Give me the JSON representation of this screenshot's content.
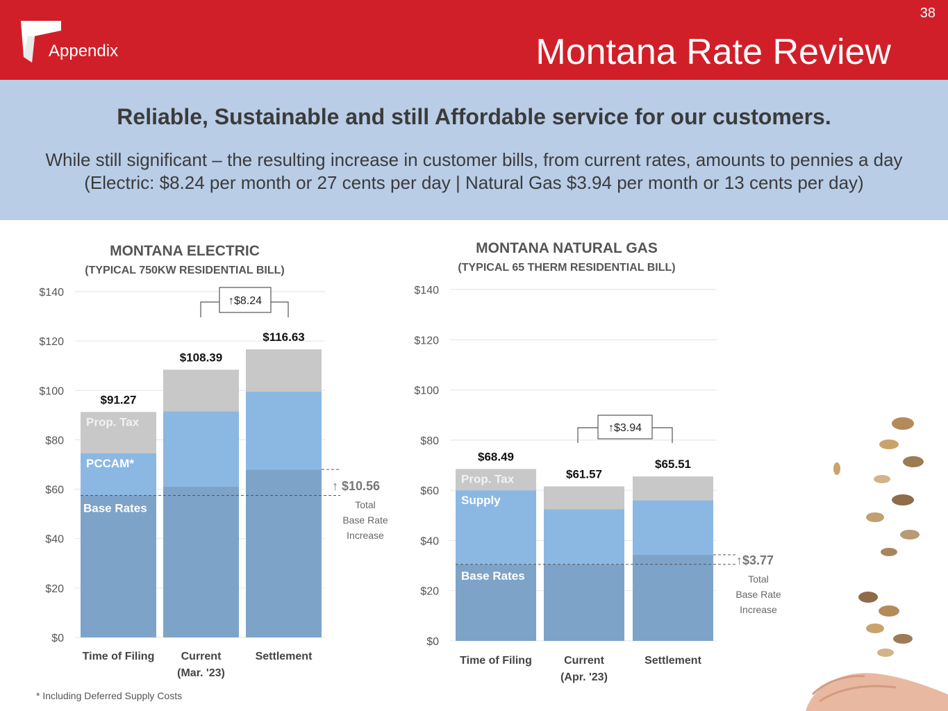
{
  "header": {
    "section": "Appendix",
    "title": "Montana Rate Review",
    "page_number": "38"
  },
  "banner": {
    "headline": "Reliable, Sustainable and still Affordable service for our customers.",
    "line1": "While still significant – the resulting increase in customer bills, from current rates, amounts to pennies a day",
    "line2": "(Electric: $8.24 per month or 27 cents per day | Natural Gas $3.94 per month or 13 cents per day)"
  },
  "footnote": "* Including Deferred Supply Costs",
  "colors": {
    "header_red": "#d11f29",
    "banner_blue": "#b9cde6",
    "base_rates": "#7ea3c9",
    "middle_layer": "#8bb8e2",
    "prop_tax": "#c8c8c8"
  },
  "chart_data": [
    {
      "type": "bar",
      "stacked": true,
      "title": "MONTANA ELECTRIC",
      "subtitle": "(TYPICAL 750KW RESIDENTIAL BILL)",
      "categories": [
        [
          "Time of Filing"
        ],
        [
          "Current",
          "(Mar. '23)"
        ],
        [
          "Settlement"
        ]
      ],
      "series": [
        {
          "name": "Base Rates",
          "values": [
            57.5,
            61,
            68
          ]
        },
        {
          "name": "PCCAM*",
          "values": [
            17,
            30.5,
            31.5
          ]
        },
        {
          "name": "Prop. Tax",
          "values": [
            16.77,
            16.89,
            17.13
          ]
        }
      ],
      "totals": [
        "$91.27",
        "$108.39",
        "$116.63"
      ],
      "ylim": [
        0,
        140
      ],
      "yticks": [
        "$0",
        "$20",
        "$40",
        "$60",
        "$80",
        "$100",
        "$120",
        "$140"
      ],
      "increase_bracket": "↑$8.24",
      "base_rate_increase": {
        "value": "↑ $10.56",
        "label_lines": [
          "Total",
          "Base Rate",
          "Increase"
        ]
      },
      "grid": true,
      "legend": "inside-first-bar"
    },
    {
      "type": "bar",
      "stacked": true,
      "title": "MONTANA NATURAL GAS",
      "subtitle": "(TYPICAL 65 THERM RESIDENTIAL BILL)",
      "categories": [
        [
          "Time of Filing"
        ],
        [
          "Current",
          "(Apr. '23)"
        ],
        [
          "Settlement"
        ]
      ],
      "series": [
        {
          "name": "Base Rates",
          "values": [
            30.5,
            30.5,
            34.3
          ]
        },
        {
          "name": "Supply",
          "values": [
            29.5,
            22,
            21.7
          ]
        },
        {
          "name": "Prop. Tax",
          "values": [
            8.49,
            9.07,
            9.51
          ]
        }
      ],
      "totals": [
        "$68.49",
        "$61.57",
        "$65.51"
      ],
      "ylim": [
        0,
        140
      ],
      "yticks": [
        "$0",
        "$20",
        "$40",
        "$60",
        "$80",
        "$100",
        "$120",
        "$140"
      ],
      "increase_bracket": "↑$3.94",
      "base_rate_increase": {
        "value": "↑$3.77",
        "label_lines": [
          "Total",
          "Base Rate",
          "Increase"
        ]
      },
      "grid": true,
      "legend": "inside-first-bar"
    }
  ]
}
